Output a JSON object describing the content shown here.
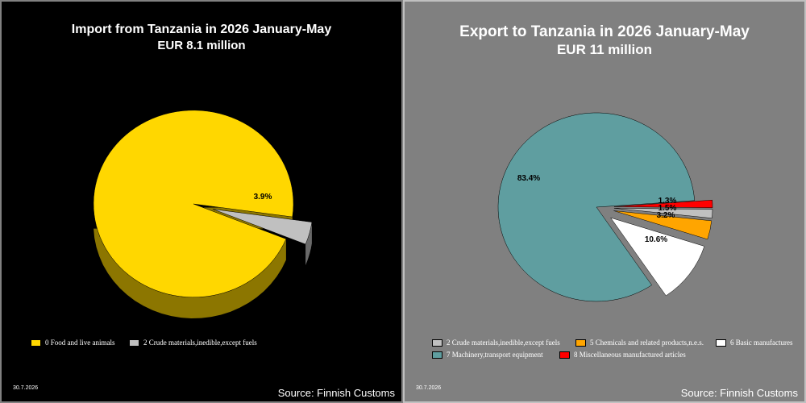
{
  "source_label": "Source: Finnish Customs",
  "date_label": "30.7.2026",
  "chart_data": [
    {
      "type": "pie",
      "title": "Import from Tanzania in 2026 January-May",
      "subtitle": "EUR   8.1 million",
      "labels": [
        "0 Food and live animals",
        "2 Crude materials,inedible,except fuels"
      ],
      "values": [
        96.1,
        3.9
      ],
      "data_labels": [
        "",
        "3.9%"
      ],
      "colors": [
        "#ffd700",
        "#c0c0c0"
      ],
      "exploded": [
        false,
        true
      ],
      "legend_position": "bottom",
      "background": "#000000"
    },
    {
      "type": "pie",
      "title": "Export to Tanzania in 2026 January-May",
      "subtitle": "EUR    11 million",
      "labels": [
        "2 Crude materials,inedible,except fuels",
        "5 Chemicals and related products,n.e.s.",
        "6 Basic manufactures",
        "7 Machinery,transport equipment",
        "8 Miscellaneous manufactured articles"
      ],
      "values": [
        1.5,
        3.2,
        10.6,
        83.4,
        1.3
      ],
      "data_labels": [
        "1.5%",
        "3.2%",
        "10.6%",
        "83.4%",
        "1.3%"
      ],
      "colors": [
        "#c0c0c0",
        "#ffa500",
        "#ffffff",
        "#5f9ea0",
        "#ff0000"
      ],
      "exploded": [
        true,
        true,
        true,
        false,
        true
      ],
      "legend_position": "bottom",
      "background": "#808080"
    }
  ]
}
